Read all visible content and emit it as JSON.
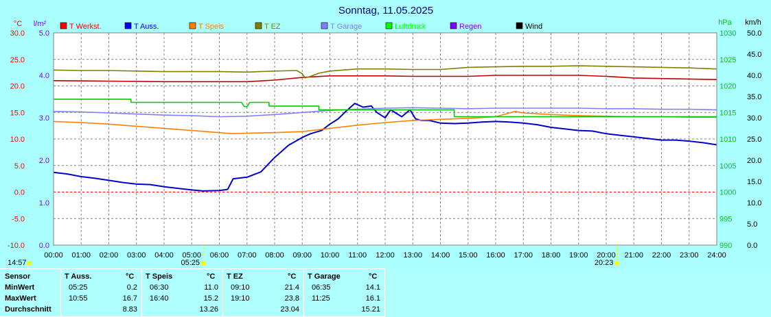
{
  "chart_data": {
    "type": "line",
    "title": "Sonntag, 11.05.2025",
    "axes": {
      "temp": {
        "unit": "°C",
        "min": -10,
        "max": 30,
        "ticks": [
          "30.0",
          "25.0",
          "20.0",
          "15.0",
          "10.0",
          "5.0",
          "0.0",
          "-5.0",
          "-10.0"
        ]
      },
      "rain": {
        "unit": "l/m²",
        "min": 0,
        "max": 5,
        "ticks": [
          "5.0",
          "4.0",
          "3.0",
          "2.0",
          "1.0",
          "0.0"
        ]
      },
      "pressure": {
        "unit": "hPa",
        "min": 990,
        "max": 1030,
        "ticks": [
          "1030",
          "1025",
          "1020",
          "1015",
          "1010",
          "1005",
          "1000",
          "995",
          "990"
        ]
      },
      "wind": {
        "unit": "km/h",
        "min": 0,
        "max": 50,
        "ticks": [
          "50.0",
          "45.0",
          "40.0",
          "35.0",
          "30.0",
          "25.0",
          "20.0",
          "15.0",
          "10.0",
          "5.0",
          "0.0"
        ]
      },
      "x": {
        "min": 0,
        "max": 24,
        "ticks": [
          "00:00",
          "01:00",
          "02:00",
          "03:00",
          "04:00",
          "05:00",
          "06:00",
          "07:00",
          "08:00",
          "09:00",
          "10:00",
          "11:00",
          "12:00",
          "13:00",
          "14:00",
          "15:00",
          "16:00",
          "17:00",
          "18:00",
          "19:00",
          "20:00",
          "21:00",
          "22:00",
          "23:00",
          "24:00"
        ]
      }
    },
    "legend": [
      {
        "name": "T Werkst.",
        "color": "#ff0000"
      },
      {
        "name": "T Auss.",
        "color": "#0000ff"
      },
      {
        "name": "T Speis",
        "color": "#ff8000"
      },
      {
        "name": "T EZ",
        "color": "#808000"
      },
      {
        "name": "T Garage",
        "color": "#8080ff"
      },
      {
        "name": "Luftdruck",
        "color": "#00ff00"
      },
      {
        "name": "Regen",
        "color": "#8000ff"
      },
      {
        "name": "Wind",
        "color": "#000000"
      }
    ],
    "series": [
      {
        "name": "T Werkst.",
        "axis": "temp",
        "color": "#c00000",
        "x": [
          0,
          2,
          4,
          6,
          7,
          8,
          9,
          10,
          11,
          12,
          13,
          14,
          15,
          16,
          17,
          18,
          19,
          20,
          21,
          22,
          23,
          24
        ],
        "y": [
          21.0,
          20.9,
          20.8,
          20.8,
          20.8,
          21.1,
          21.6,
          21.9,
          21.9,
          21.9,
          21.8,
          21.8,
          21.8,
          22.0,
          22.0,
          22.0,
          22.0,
          21.8,
          21.5,
          21.4,
          21.3,
          21.2
        ]
      },
      {
        "name": "T Auss.",
        "axis": "temp",
        "color": "#0000cc",
        "x": [
          0,
          0.5,
          1,
          1.5,
          2,
          2.5,
          3,
          3.5,
          4,
          4.5,
          5,
          5.4,
          6,
          6.3,
          6.5,
          7,
          7.5,
          8,
          8.5,
          9,
          9.3,
          9.7,
          10,
          10.3,
          10.6,
          10.9,
          11.2,
          11.5,
          11.7,
          12,
          12.2,
          12.6,
          12.9,
          13.1,
          13.3,
          13.6,
          14,
          14.5,
          15,
          15.5,
          16,
          16.5,
          17,
          17.5,
          18,
          18.5,
          19,
          19.5,
          20,
          20.5,
          21,
          21.5,
          22,
          22.5,
          23,
          23.5,
          24
        ],
        "y": [
          3.7,
          3.4,
          2.9,
          2.6,
          2.2,
          1.8,
          1.5,
          1.4,
          1.0,
          0.7,
          0.4,
          0.2,
          0.3,
          0.5,
          2.5,
          2.8,
          3.8,
          6.5,
          8.8,
          10.3,
          11.0,
          11.6,
          12.8,
          13.8,
          15.3,
          16.7,
          16.0,
          16.2,
          15.0,
          14.0,
          15.5,
          14.2,
          15.5,
          13.8,
          13.5,
          13.5,
          13.0,
          12.9,
          13.0,
          13.2,
          13.3,
          13.2,
          13.0,
          12.7,
          12.2,
          11.9,
          11.6,
          11.5,
          11.0,
          10.7,
          10.4,
          10.1,
          9.8,
          9.8,
          9.6,
          9.3,
          8.9
        ]
      },
      {
        "name": "T Speis",
        "axis": "temp",
        "color": "#ff8000",
        "x": [
          0,
          1,
          2,
          3,
          4,
          5,
          6,
          6.5,
          7,
          8,
          9,
          10,
          11,
          12,
          13,
          14,
          15,
          16,
          16.7,
          17,
          18,
          19,
          20,
          21,
          22,
          23,
          24
        ],
        "y": [
          13.3,
          13.1,
          12.8,
          12.4,
          12.0,
          11.6,
          11.2,
          11.0,
          11.1,
          11.2,
          11.4,
          12.0,
          12.6,
          13.1,
          13.5,
          13.7,
          13.9,
          14.2,
          15.2,
          14.9,
          14.6,
          14.4,
          14.3,
          14.2,
          14.2,
          14.1,
          14.1
        ]
      },
      {
        "name": "T EZ",
        "axis": "temp",
        "color": "#7f7f00",
        "x": [
          0,
          1,
          2,
          3,
          4,
          5,
          6,
          7,
          8,
          8.8,
          9.0,
          9.1,
          9.3,
          9.6,
          10,
          11,
          12,
          13,
          14,
          15,
          16,
          17,
          18,
          19,
          20,
          21,
          22,
          23,
          24
        ],
        "y": [
          23.0,
          22.9,
          22.9,
          22.8,
          22.7,
          22.7,
          22.7,
          22.6,
          22.8,
          22.9,
          22.3,
          21.5,
          21.8,
          22.4,
          22.8,
          23.2,
          23.2,
          23.1,
          23.1,
          23.5,
          23.6,
          23.7,
          23.7,
          23.8,
          23.7,
          23.6,
          23.5,
          23.4,
          23.2
        ]
      },
      {
        "name": "T Garage",
        "axis": "temp",
        "color": "#8080ff",
        "x": [
          0,
          1,
          2,
          3,
          4,
          5,
          6,
          7,
          8,
          9,
          10,
          11,
          12,
          13,
          14,
          15,
          16,
          17,
          18,
          19,
          20,
          21,
          22,
          23,
          24
        ],
        "y": [
          15.2,
          15.1,
          14.9,
          14.7,
          14.5,
          14.4,
          14.2,
          14.3,
          14.6,
          15.0,
          15.4,
          15.6,
          15.8,
          15.9,
          15.8,
          15.7,
          15.8,
          15.8,
          15.8,
          15.8,
          15.7,
          15.7,
          15.6,
          15.6,
          15.5
        ]
      },
      {
        "name": "Luftdruck",
        "axis": "pressure",
        "color": "#00cc00",
        "x": [
          0,
          2.8,
          2.8,
          6.8,
          6.9,
          7.0,
          7.1,
          7.8,
          7.8,
          9.6,
          9.6,
          14.5,
          14.5,
          24
        ],
        "y": [
          1017.5,
          1017.5,
          1016.9,
          1016.9,
          1016.1,
          1016.1,
          1016.9,
          1016.9,
          1016.2,
          1016.2,
          1015.5,
          1015.5,
          1014.2,
          1014.2
        ]
      }
    ],
    "markers": [
      {
        "label": "14:57",
        "position": "bottom-left"
      },
      {
        "label": "05:25",
        "hour": 5.417
      },
      {
        "label": "20:23",
        "hour": 20.383
      }
    ]
  },
  "stats": {
    "row_labels": [
      "Sensor",
      "MinWert",
      "MaxWert",
      "Durchschnitt"
    ],
    "sensors": [
      {
        "name": "T Auss.",
        "unit": "°C",
        "min_time": "05:25",
        "min": "0.2",
        "max_time": "10:55",
        "max": "16.7",
        "avg": "8.83"
      },
      {
        "name": "T Speis",
        "unit": "°C",
        "min_time": "06:30",
        "min": "11.0",
        "max_time": "16:40",
        "max": "15.2",
        "avg": "13.26"
      },
      {
        "name": "T EZ",
        "unit": "°C",
        "min_time": "09:10",
        "min": "21.4",
        "max_time": "19:10",
        "max": "23.8",
        "avg": "23.04"
      },
      {
        "name": "T Garage",
        "unit": "°C",
        "min_time": "06:35",
        "min": "14.1",
        "max_time": "11:25",
        "max": "16.1",
        "avg": "15.21"
      }
    ]
  }
}
